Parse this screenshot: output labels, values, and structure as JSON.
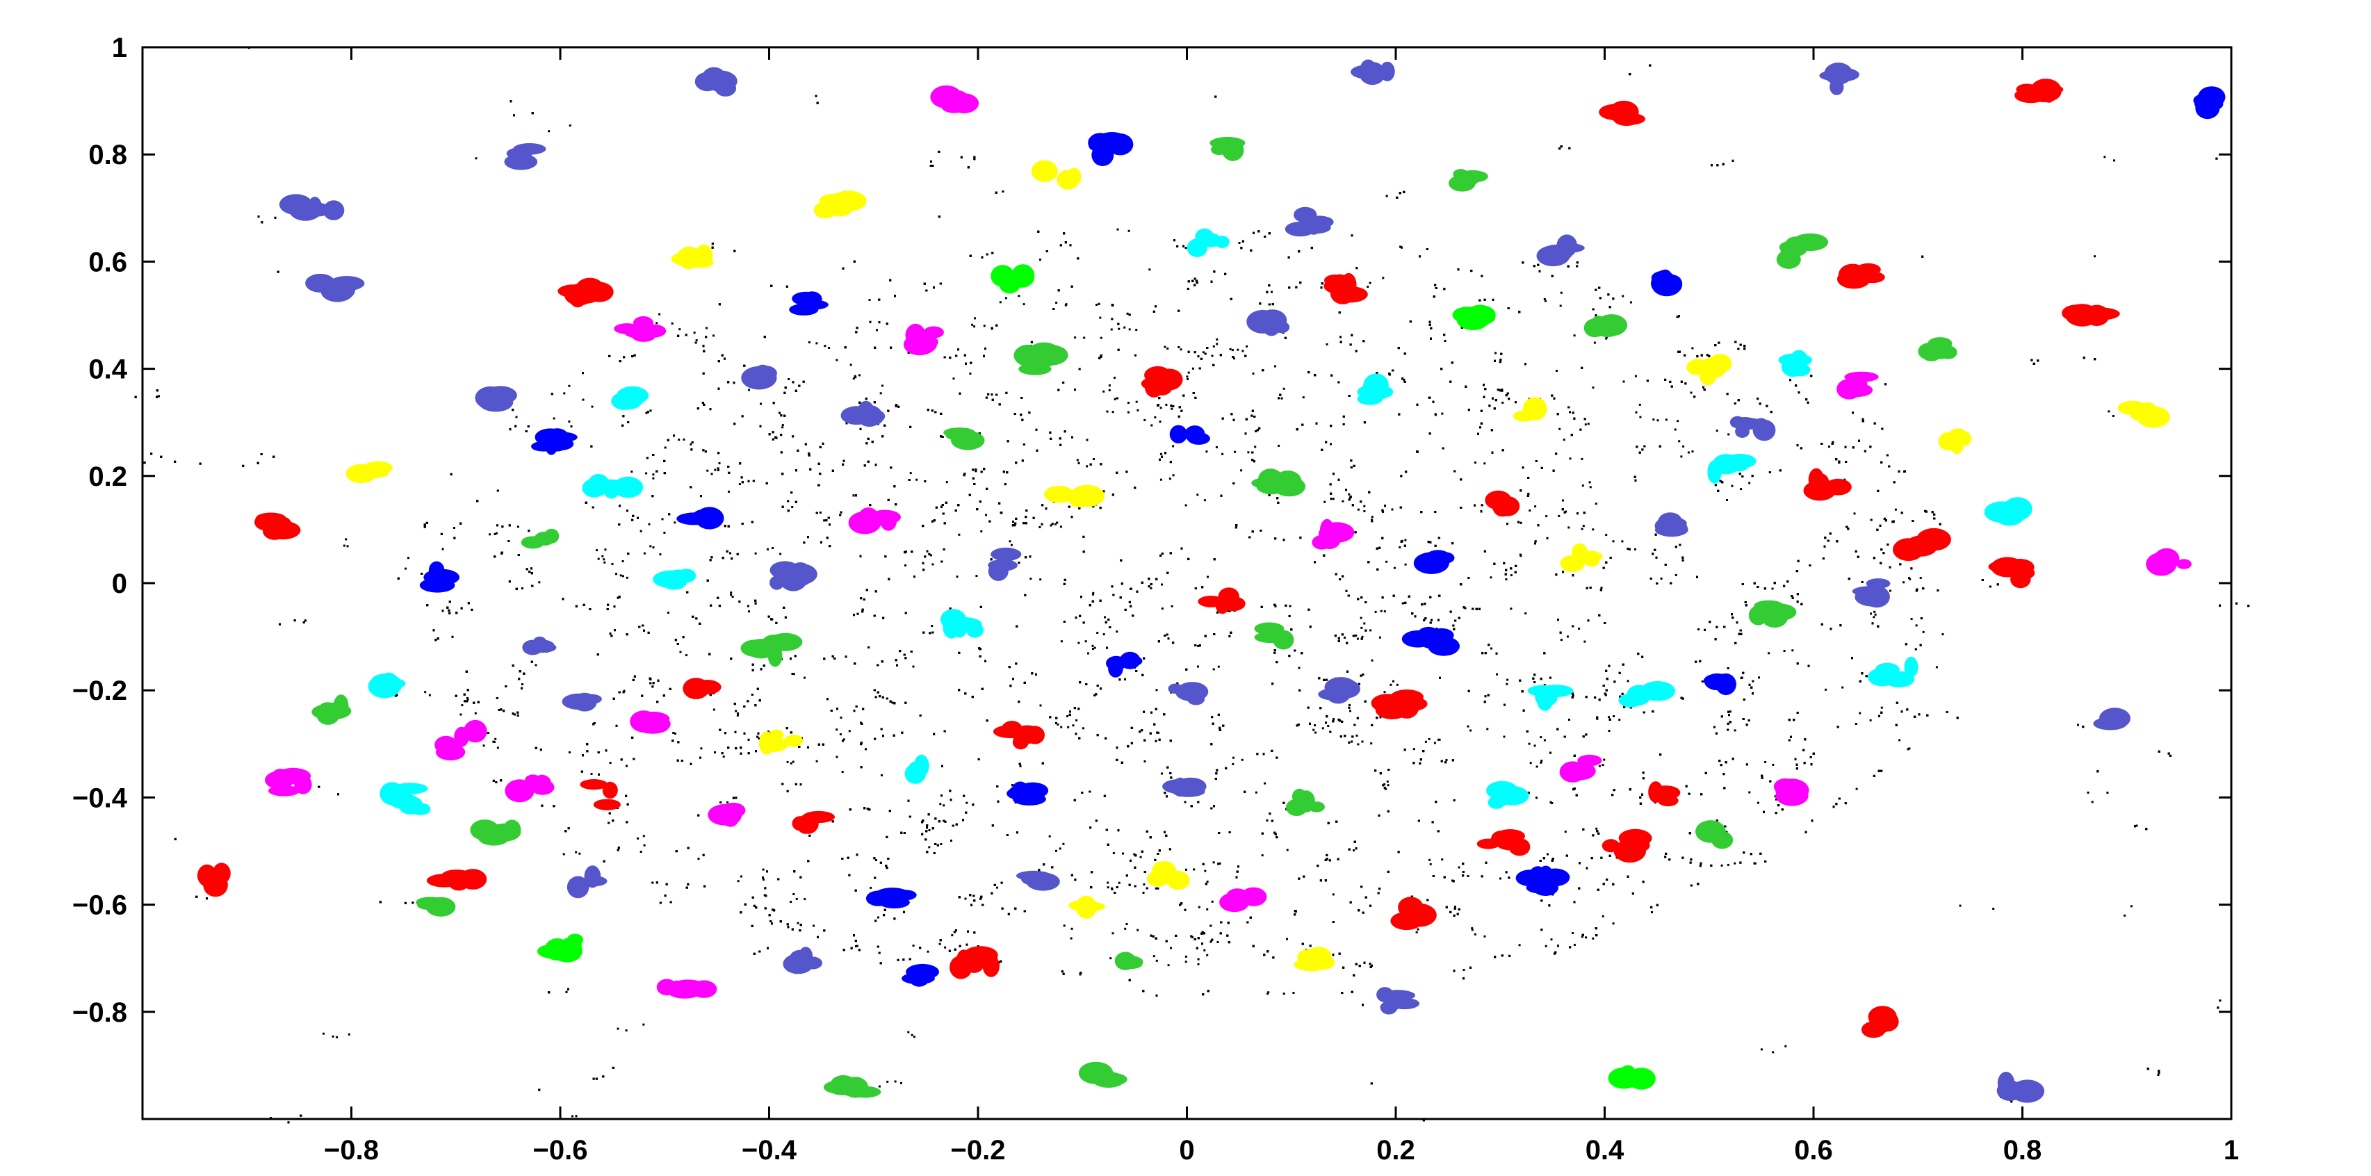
{
  "chart_data": {
    "type": "scatter",
    "title": "",
    "xlabel": "",
    "ylabel": "",
    "xlim": [
      -1,
      1
    ],
    "ylim": [
      -1,
      1
    ],
    "x_ticks": [
      "-0.8",
      "-0.6",
      "-0.4",
      "-0.2",
      "0",
      "0.2",
      "0.4",
      "0.6",
      "0.8",
      "1"
    ],
    "y_ticks": [
      "1",
      "0.8",
      "0.6",
      "0.4",
      "0.2",
      "0",
      "-0.2",
      "-0.4",
      "-0.6",
      "-0.8"
    ],
    "x_tick_values": [
      -0.8,
      -0.6,
      -0.4,
      -0.2,
      0,
      0.2,
      0.4,
      0.6,
      0.8,
      1
    ],
    "y_tick_values": [
      1,
      0.8,
      0.6,
      0.4,
      0.2,
      0,
      -0.2,
      -0.4,
      -0.6,
      -0.8
    ],
    "grid": false,
    "legend": "none",
    "background_points": {
      "color": "#000000",
      "shape": "ellipse",
      "center": [
        0,
        -0.05
      ],
      "radii": [
        0.75,
        0.72
      ],
      "count": 4200
    },
    "cluster_colors": [
      "#ff0000",
      "#00ff00",
      "#0000ff",
      "#ff00ff",
      "#00ffff",
      "#ffff00",
      "#5555cc",
      "#33cc33"
    ],
    "clusters": [
      {
        "x": -0.88,
        "y": 0.11,
        "color": "#ff0000"
      },
      {
        "x": -0.82,
        "y": -0.24,
        "color": "#33cc33"
      },
      {
        "x": -0.78,
        "y": 0.21,
        "color": "#ffff00"
      },
      {
        "x": -0.77,
        "y": -0.19,
        "color": "#00ffff"
      },
      {
        "x": -0.72,
        "y": 0.01,
        "color": "#0000ff"
      },
      {
        "x": -0.7,
        "y": -0.55,
        "color": "#ff0000"
      },
      {
        "x": -0.66,
        "y": -0.46,
        "color": "#33cc33"
      },
      {
        "x": -0.63,
        "y": -0.38,
        "color": "#ff00ff"
      },
      {
        "x": -0.6,
        "y": 0.26,
        "color": "#0000ff"
      },
      {
        "x": -0.58,
        "y": -0.22,
        "color": "#5555cc"
      },
      {
        "x": -0.56,
        "y": -0.39,
        "color": "#ff0000"
      },
      {
        "x": -0.55,
        "y": 0.18,
        "color": "#00ffff"
      },
      {
        "x": -0.52,
        "y": -0.26,
        "color": "#ff00ff"
      },
      {
        "x": -0.49,
        "y": 0.01,
        "color": "#00ffff"
      },
      {
        "x": -0.47,
        "y": 0.61,
        "color": "#ffff00"
      },
      {
        "x": -0.46,
        "y": -0.19,
        "color": "#ff0000"
      },
      {
        "x": -0.44,
        "y": -0.43,
        "color": "#ff00ff"
      },
      {
        "x": -0.41,
        "y": 0.39,
        "color": "#5555cc"
      },
      {
        "x": -0.39,
        "y": -0.29,
        "color": "#ffff00"
      },
      {
        "x": -0.36,
        "y": -0.45,
        "color": "#ff0000"
      },
      {
        "x": -0.33,
        "y": 0.71,
        "color": "#ffff00"
      },
      {
        "x": -0.3,
        "y": 0.11,
        "color": "#ff00ff"
      },
      {
        "x": -0.28,
        "y": -0.59,
        "color": "#0000ff"
      },
      {
        "x": -0.26,
        "y": -0.35,
        "color": "#00ffff"
      },
      {
        "x": -0.22,
        "y": 0.27,
        "color": "#33cc33"
      },
      {
        "x": -0.2,
        "y": -0.71,
        "color": "#ff0000"
      },
      {
        "x": -0.18,
        "y": 0.04,
        "color": "#5555cc"
      },
      {
        "x": -0.17,
        "y": 0.56,
        "color": "#00ff00"
      },
      {
        "x": -0.15,
        "y": -0.39,
        "color": "#0000ff"
      },
      {
        "x": -0.12,
        "y": 0.76,
        "color": "#ffff00"
      },
      {
        "x": -0.1,
        "y": -0.6,
        "color": "#ffff00"
      },
      {
        "x": -0.08,
        "y": 0.81,
        "color": "#0000ff"
      },
      {
        "x": -0.05,
        "y": -0.71,
        "color": "#33cc33"
      },
      {
        "x": -0.03,
        "y": 0.38,
        "color": "#ff0000"
      },
      {
        "x": 0.0,
        "y": -0.38,
        "color": "#5555cc"
      },
      {
        "x": 0.02,
        "y": 0.64,
        "color": "#00ffff"
      },
      {
        "x": 0.03,
        "y": -0.03,
        "color": "#ff0000"
      },
      {
        "x": 0.04,
        "y": 0.82,
        "color": "#33cc33"
      },
      {
        "x": 0.06,
        "y": -0.59,
        "color": "#ff00ff"
      },
      {
        "x": 0.09,
        "y": 0.18,
        "color": "#33cc33"
      },
      {
        "x": 0.12,
        "y": -0.41,
        "color": "#33cc33"
      },
      {
        "x": 0.14,
        "y": -0.2,
        "color": "#5555cc"
      },
      {
        "x": 0.18,
        "y": 0.36,
        "color": "#00ffff"
      },
      {
        "x": 0.2,
        "y": -0.23,
        "color": "#ff0000"
      },
      {
        "x": 0.22,
        "y": -0.62,
        "color": "#ff0000"
      },
      {
        "x": 0.25,
        "y": 0.05,
        "color": "#0000ff"
      },
      {
        "x": 0.27,
        "y": 0.76,
        "color": "#33cc33"
      },
      {
        "x": 0.3,
        "y": -0.48,
        "color": "#ff0000"
      },
      {
        "x": 0.33,
        "y": 0.32,
        "color": "#ffff00"
      },
      {
        "x": 0.35,
        "y": -0.21,
        "color": "#00ffff"
      },
      {
        "x": 0.38,
        "y": -0.34,
        "color": "#ff00ff"
      },
      {
        "x": 0.4,
        "y": 0.48,
        "color": "#33cc33"
      },
      {
        "x": 0.42,
        "y": -0.49,
        "color": "#ff0000"
      },
      {
        "x": 0.44,
        "y": -0.21,
        "color": "#00ffff"
      },
      {
        "x": 0.46,
        "y": 0.11,
        "color": "#5555cc"
      },
      {
        "x": 0.5,
        "y": 0.4,
        "color": "#ffff00"
      },
      {
        "x": 0.52,
        "y": -0.18,
        "color": "#0000ff"
      },
      {
        "x": 0.54,
        "y": 0.29,
        "color": "#5555cc"
      },
      {
        "x": 0.56,
        "y": -0.06,
        "color": "#33cc33"
      },
      {
        "x": 0.59,
        "y": 0.41,
        "color": "#00ffff"
      },
      {
        "x": 0.61,
        "y": 0.18,
        "color": "#ff0000"
      },
      {
        "x": 0.64,
        "y": 0.37,
        "color": "#ff00ff"
      },
      {
        "x": 0.66,
        "y": -0.02,
        "color": "#5555cc"
      },
      {
        "x": 0.68,
        "y": -0.17,
        "color": "#00ffff"
      },
      {
        "x": 0.7,
        "y": 0.07,
        "color": "#ff0000"
      },
      {
        "x": 0.74,
        "y": 0.27,
        "color": "#ffff00"
      },
      {
        "x": 0.78,
        "y": 0.13,
        "color": "#00ffff"
      },
      {
        "x": 0.8,
        "y": 0.02,
        "color": "#ff0000"
      },
      {
        "x": 0.86,
        "y": 0.5,
        "color": "#ff0000"
      },
      {
        "x": -0.58,
        "y": 0.54,
        "color": "#ff0000"
      },
      {
        "x": -0.52,
        "y": 0.47,
        "color": "#ff00ff"
      },
      {
        "x": -0.36,
        "y": 0.52,
        "color": "#0000ff"
      },
      {
        "x": -0.25,
        "y": 0.45,
        "color": "#ff00ff"
      },
      {
        "x": -0.14,
        "y": 0.42,
        "color": "#33cc33"
      },
      {
        "x": 0.08,
        "y": 0.48,
        "color": "#5555cc"
      },
      {
        "x": 0.15,
        "y": 0.55,
        "color": "#ff0000"
      },
      {
        "x": 0.28,
        "y": 0.5,
        "color": "#00ff00"
      },
      {
        "x": 0.36,
        "y": 0.62,
        "color": "#5555cc"
      },
      {
        "x": 0.46,
        "y": 0.56,
        "color": "#0000ff"
      },
      {
        "x": 0.58,
        "y": 0.62,
        "color": "#33cc33"
      },
      {
        "x": -0.66,
        "y": 0.34,
        "color": "#5555cc"
      },
      {
        "x": -0.62,
        "y": 0.08,
        "color": "#33cc33"
      },
      {
        "x": -0.46,
        "y": 0.12,
        "color": "#0000ff"
      },
      {
        "x": -0.38,
        "y": 0.01,
        "color": "#5555cc"
      },
      {
        "x": -0.1,
        "y": 0.16,
        "color": "#ffff00"
      },
      {
        "x": 0.0,
        "y": 0.27,
        "color": "#0000ff"
      },
      {
        "x": 0.14,
        "y": 0.09,
        "color": "#ff00ff"
      },
      {
        "x": 0.3,
        "y": 0.15,
        "color": "#ff0000"
      },
      {
        "x": 0.38,
        "y": 0.05,
        "color": "#ffff00"
      },
      {
        "x": -0.62,
        "y": -0.12,
        "color": "#5555cc"
      },
      {
        "x": -0.4,
        "y": -0.12,
        "color": "#33cc33"
      },
      {
        "x": -0.22,
        "y": -0.08,
        "color": "#00ffff"
      },
      {
        "x": -0.06,
        "y": -0.15,
        "color": "#0000ff"
      },
      {
        "x": 0.08,
        "y": -0.1,
        "color": "#33cc33"
      },
      {
        "x": 0.24,
        "y": -0.1,
        "color": "#0000ff"
      },
      {
        "x": -0.6,
        "y": -0.68,
        "color": "#00ff00"
      },
      {
        "x": -0.48,
        "y": -0.76,
        "color": "#ff00ff"
      },
      {
        "x": -0.36,
        "y": -0.7,
        "color": "#5555cc"
      },
      {
        "x": -0.26,
        "y": -0.74,
        "color": "#0000ff"
      },
      {
        "x": -0.14,
        "y": -0.55,
        "color": "#5555cc"
      },
      {
        "x": 0.12,
        "y": -0.7,
        "color": "#ffff00"
      },
      {
        "x": 0.2,
        "y": -0.78,
        "color": "#5555cc"
      },
      {
        "x": 0.34,
        "y": -0.56,
        "color": "#0000ff"
      },
      {
        "x": 0.5,
        "y": -0.47,
        "color": "#33cc33"
      },
      {
        "x": 0.58,
        "y": -0.38,
        "color": "#ff00ff"
      },
      {
        "x": -0.7,
        "y": -0.3,
        "color": "#ff00ff"
      },
      {
        "x": -0.74,
        "y": -0.4,
        "color": "#00ffff"
      },
      {
        "x": -0.54,
        "y": 0.34,
        "color": "#00ffff"
      },
      {
        "x": 0.64,
        "y": 0.57,
        "color": "#ff0000"
      },
      {
        "x": 0.72,
        "y": 0.43,
        "color": "#33cc33"
      },
      {
        "x": -0.82,
        "y": 0.55,
        "color": "#5555cc"
      },
      {
        "x": -0.64,
        "y": 0.8,
        "color": "#5555cc"
      },
      {
        "x": -0.45,
        "y": 0.93,
        "color": "#5555cc"
      },
      {
        "x": -0.22,
        "y": 0.9,
        "color": "#ff00ff"
      },
      {
        "x": 0.18,
        "y": 0.96,
        "color": "#5555cc"
      },
      {
        "x": 0.42,
        "y": 0.88,
        "color": "#ff0000"
      },
      {
        "x": 0.62,
        "y": 0.94,
        "color": "#5555cc"
      },
      {
        "x": 0.82,
        "y": 0.92,
        "color": "#ff0000"
      },
      {
        "x": 0.98,
        "y": 0.9,
        "color": "#0000ff"
      },
      {
        "x": -0.84,
        "y": 0.7,
        "color": "#5555cc"
      },
      {
        "x": -0.93,
        "y": -0.55,
        "color": "#ff0000"
      },
      {
        "x": -0.86,
        "y": -0.37,
        "color": "#ff00ff"
      },
      {
        "x": 0.42,
        "y": -0.93,
        "color": "#00ff00"
      },
      {
        "x": -0.08,
        "y": -0.92,
        "color": "#33cc33"
      },
      {
        "x": 0.66,
        "y": -0.82,
        "color": "#ff0000"
      },
      {
        "x": 0.8,
        "y": -0.95,
        "color": "#5555cc"
      },
      {
        "x": 0.88,
        "y": -0.26,
        "color": "#5555cc"
      },
      {
        "x": 0.94,
        "y": 0.04,
        "color": "#ff00ff"
      },
      {
        "x": 0.92,
        "y": 0.32,
        "color": "#ffff00"
      },
      {
        "x": -0.32,
        "y": -0.94,
        "color": "#33cc33"
      },
      {
        "x": 0.0,
        "y": -0.2,
        "color": "#5555cc"
      },
      {
        "x": -0.3,
        "y": 0.32,
        "color": "#5555cc"
      },
      {
        "x": 0.12,
        "y": 0.67,
        "color": "#5555cc"
      },
      {
        "x": 0.52,
        "y": 0.22,
        "color": "#00ffff"
      },
      {
        "x": -0.72,
        "y": -0.6,
        "color": "#33cc33"
      },
      {
        "x": 0.3,
        "y": -0.4,
        "color": "#00ffff"
      },
      {
        "x": 0.46,
        "y": -0.4,
        "color": "#ff0000"
      },
      {
        "x": -0.02,
        "y": -0.55,
        "color": "#ffff00"
      },
      {
        "x": -0.16,
        "y": -0.28,
        "color": "#ff0000"
      },
      {
        "x": -0.58,
        "y": -0.56,
        "color": "#5555cc"
      }
    ]
  }
}
